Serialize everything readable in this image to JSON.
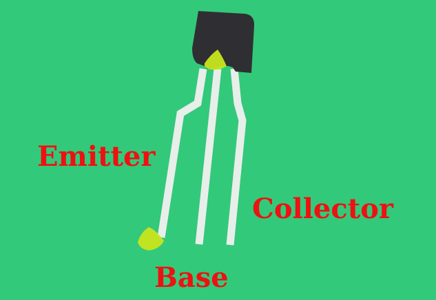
{
  "labels": {
    "emitter": "Emitter",
    "collector": "Collector",
    "base": "Base"
  },
  "colors": {
    "background": "#33c97a",
    "body": "#2f2f33",
    "leads": "#e8eeea",
    "highlight": "#c8e61e",
    "label": "#ee1111"
  }
}
